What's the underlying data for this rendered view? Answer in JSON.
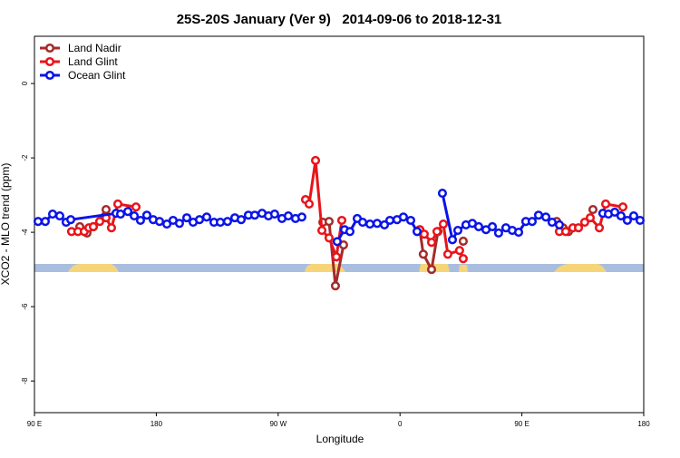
{
  "chart_data": {
    "type": "line",
    "title": "25S-20S January (Ver 9)   2014-09-06 to 2018-12-31",
    "xlabel": "Longitude",
    "ylabel": "XCO2 - MLO trend (ppm)",
    "xlim": [
      90,
      540
    ],
    "ylim": [
      -8.85,
      1.27
    ],
    "xticks": [
      {
        "value": 90,
        "label": "90 E"
      },
      {
        "value": 180,
        "label": "180"
      },
      {
        "value": 270,
        "label": "90 W"
      },
      {
        "value": 360,
        "label": "0"
      },
      {
        "value": 450,
        "label": "90 E"
      },
      {
        "value": 540,
        "label": "180"
      }
    ],
    "yticks": [
      0,
      -2,
      -4,
      -6,
      -8
    ],
    "legend": "top-left",
    "series": [
      {
        "name": "Land Nadir",
        "color": "#a52a2a",
        "x": [
          123.5,
          128.8,
          133.5,
          142.9,
          null,
          303,
          307.6,
          312.3,
          318.3,
          null,
          374.6,
          377.2,
          383.3,
          388,
          null,
          406.7,
          null,
          475.7,
          480.4,
          484.4,
          null,
          502.5
        ],
        "values": [
          -3.85,
          -4.02,
          -3.85,
          -3.39,
          null,
          -3.73,
          -3.71,
          -5.44,
          -4.34,
          null,
          -3.93,
          -4.59,
          -5.0,
          -3.98,
          null,
          -4.24,
          null,
          -3.71,
          -3.88,
          -3.98,
          null,
          -3.39
        ]
      },
      {
        "name": "Land Glint",
        "color": "#e8141a",
        "x": [
          117.4,
          122.1,
          126.8,
          130.2,
          133.5,
          138.2,
          142.9,
          146.9,
          151.6,
          165,
          null,
          290.2,
          292.9,
          297.6,
          302.3,
          307.6,
          313,
          317,
          null,
          374.6,
          377.9,
          383.3,
          387.3,
          392,
          395.3,
          404,
          406.7,
          null,
          477.7,
          482.4,
          487.7,
          491.8,
          496.4,
          500.5,
          507.2,
          511.9,
          524.6
        ],
        "values": [
          -3.98,
          -3.98,
          -3.98,
          -3.88,
          -3.85,
          -3.71,
          -3.61,
          -3.88,
          -3.24,
          -3.32,
          null,
          -3.12,
          -3.24,
          -2.07,
          -3.95,
          -4.15,
          -4.66,
          -3.68,
          null,
          -3.93,
          -4.05,
          -4.27,
          -3.98,
          -3.78,
          -4.59,
          -4.49,
          -4.71,
          null,
          -3.98,
          -3.98,
          -3.88,
          -3.88,
          -3.73,
          -3.61,
          -3.88,
          -3.24,
          -3.32
        ]
      },
      {
        "name": "Ocean Glint",
        "color": "#0a14e6",
        "x": [
          92.7,
          98,
          103.4,
          108.7,
          113.4,
          116.8,
          150.3,
          153.6,
          159,
          163.7,
          168.3,
          173,
          177.7,
          182.4,
          187.8,
          192.4,
          197.1,
          202.5,
          207.2,
          211.9,
          217.2,
          222.6,
          227.3,
          232.6,
          238,
          242.7,
          248,
          252.7,
          258.1,
          262.8,
          267.4,
          272.8,
          277.5,
          282.8,
          287.5,
          null,
          313.6,
          319,
          323,
          328.4,
          332.4,
          337.8,
          343.1,
          348.5,
          352.5,
          357.8,
          362.5,
          367.9,
          372.6,
          null,
          391.3,
          398.7,
          402.7,
          408.7,
          413.4,
          418.1,
          423.5,
          428.2,
          432.8,
          438.2,
          442.9,
          447.6,
          452.9,
          457.6,
          462.3,
          467.7,
          472.3,
          477.7,
          null,
          509.8,
          513.9,
          518.6,
          523.2,
          527.9,
          532.6,
          537.3
        ],
        "values": [
          -3.71,
          -3.71,
          -3.51,
          -3.56,
          -3.73,
          -3.66,
          -3.49,
          -3.51,
          -3.44,
          -3.56,
          -3.68,
          -3.54,
          -3.66,
          -3.71,
          -3.78,
          -3.68,
          -3.76,
          -3.61,
          -3.73,
          -3.66,
          -3.59,
          -3.73,
          -3.73,
          -3.71,
          -3.61,
          -3.66,
          -3.54,
          -3.54,
          -3.49,
          -3.56,
          -3.51,
          -3.63,
          -3.56,
          -3.63,
          -3.59,
          null,
          -4.25,
          -3.93,
          -3.98,
          -3.63,
          -3.73,
          -3.78,
          -3.76,
          -3.8,
          -3.68,
          -3.66,
          -3.59,
          -3.68,
          -3.98,
          null,
          -2.95,
          -4.2,
          -3.95,
          -3.8,
          -3.76,
          -3.85,
          -3.93,
          -3.85,
          -4.02,
          -3.88,
          -3.95,
          -4.0,
          -3.71,
          -3.71,
          -3.54,
          -3.59,
          -3.73,
          -3.8,
          null,
          -3.49,
          -3.51,
          -3.46,
          -3.56,
          -3.68,
          -3.56,
          -3.68
        ]
      }
    ]
  }
}
